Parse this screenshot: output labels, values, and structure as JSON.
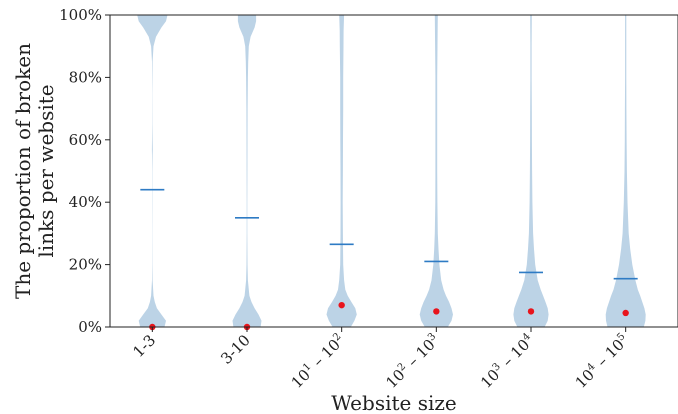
{
  "chart_data": {
    "type": "violin",
    "xlabel": "Website size",
    "ylabel_lines": [
      "The proportion of broken",
      "links per website"
    ],
    "ylim": [
      0,
      100
    ],
    "yticks": [
      0,
      20,
      40,
      60,
      80,
      100
    ],
    "ytick_labels": [
      "0%",
      "20%",
      "40%",
      "60%",
      "80%",
      "100%"
    ],
    "colors": {
      "violin": "#bcd3e6",
      "mean": "#2e7bc4",
      "median": "#e8141c"
    },
    "categories": [
      {
        "label": "1-3",
        "parts": [],
        "mean": 44,
        "median": 0,
        "density": [
          [
            0,
            0.4
          ],
          [
            2,
            0.45
          ],
          [
            4,
            0.3
          ],
          [
            6,
            0.15
          ],
          [
            8,
            0.08
          ],
          [
            10,
            0.04
          ],
          [
            15,
            0.01
          ],
          [
            20,
            0.004
          ],
          [
            30,
            0.003
          ],
          [
            40,
            0.004
          ],
          [
            50,
            0.006
          ],
          [
            55,
            0.01
          ],
          [
            57,
            0.015
          ],
          [
            60,
            0.01
          ],
          [
            65,
            0.005
          ],
          [
            75,
            0.003
          ],
          [
            85,
            0.01
          ],
          [
            90,
            0.04
          ],
          [
            93,
            0.12
          ],
          [
            96,
            0.3
          ],
          [
            98,
            0.45
          ],
          [
            100,
            0.5
          ]
        ]
      },
      {
        "label": "3-10",
        "parts": [],
        "mean": 35,
        "median": 0,
        "density": [
          [
            0,
            0.45
          ],
          [
            2,
            0.48
          ],
          [
            4,
            0.38
          ],
          [
            6,
            0.25
          ],
          [
            8,
            0.15
          ],
          [
            10,
            0.08
          ],
          [
            15,
            0.03
          ],
          [
            20,
            0.015
          ],
          [
            30,
            0.01
          ],
          [
            40,
            0.01
          ],
          [
            50,
            0.012
          ],
          [
            60,
            0.015
          ],
          [
            70,
            0.02
          ],
          [
            80,
            0.03
          ],
          [
            85,
            0.04
          ],
          [
            90,
            0.06
          ],
          [
            93,
            0.12
          ],
          [
            96,
            0.25
          ],
          [
            98,
            0.3
          ],
          [
            100,
            0.3
          ]
        ]
      },
      {
        "label": "",
        "parts": [
          "10",
          "1",
          " – 10",
          "2"
        ],
        "mean": 26.5,
        "median": 7,
        "density": [
          [
            0,
            0.3
          ],
          [
            2,
            0.42
          ],
          [
            4,
            0.5
          ],
          [
            6,
            0.45
          ],
          [
            8,
            0.32
          ],
          [
            10,
            0.2
          ],
          [
            12,
            0.12
          ],
          [
            15,
            0.08
          ],
          [
            20,
            0.05
          ],
          [
            30,
            0.04
          ],
          [
            40,
            0.035
          ],
          [
            50,
            0.04
          ],
          [
            60,
            0.045
          ],
          [
            70,
            0.05
          ],
          [
            80,
            0.05
          ],
          [
            90,
            0.06
          ],
          [
            95,
            0.065
          ],
          [
            100,
            0.08
          ]
        ]
      },
      {
        "label": "",
        "parts": [
          "10",
          "2",
          " – 10",
          "3"
        ],
        "mean": 21,
        "median": 5,
        "density": [
          [
            0,
            0.38
          ],
          [
            2,
            0.5
          ],
          [
            4,
            0.55
          ],
          [
            6,
            0.5
          ],
          [
            8,
            0.42
          ],
          [
            10,
            0.32
          ],
          [
            12,
            0.24
          ],
          [
            15,
            0.16
          ],
          [
            20,
            0.1
          ],
          [
            25,
            0.07
          ],
          [
            30,
            0.05
          ],
          [
            40,
            0.035
          ],
          [
            50,
            0.03
          ],
          [
            60,
            0.03
          ],
          [
            70,
            0.03
          ],
          [
            80,
            0.03
          ],
          [
            90,
            0.04
          ],
          [
            100,
            0.05
          ]
        ]
      },
      {
        "label": "",
        "parts": [
          "10",
          "3",
          " – 10",
          "4"
        ],
        "mean": 17.5,
        "median": 5,
        "density": [
          [
            0,
            0.45
          ],
          [
            2,
            0.55
          ],
          [
            4,
            0.58
          ],
          [
            6,
            0.55
          ],
          [
            8,
            0.48
          ],
          [
            10,
            0.4
          ],
          [
            12,
            0.32
          ],
          [
            15,
            0.22
          ],
          [
            20,
            0.14
          ],
          [
            25,
            0.1
          ],
          [
            30,
            0.07
          ],
          [
            40,
            0.045
          ],
          [
            50,
            0.035
          ],
          [
            60,
            0.03
          ],
          [
            70,
            0.025
          ],
          [
            80,
            0.02
          ],
          [
            90,
            0.02
          ],
          [
            100,
            0.025
          ]
        ]
      },
      {
        "label": "",
        "parts": [
          "10",
          "4",
          " – 10",
          "5"
        ],
        "mean": 15.5,
        "median": 4.5,
        "density": [
          [
            0,
            0.6
          ],
          [
            2,
            0.65
          ],
          [
            4,
            0.66
          ],
          [
            6,
            0.62
          ],
          [
            8,
            0.55
          ],
          [
            10,
            0.48
          ],
          [
            12,
            0.4
          ],
          [
            15,
            0.32
          ],
          [
            20,
            0.22
          ],
          [
            25,
            0.15
          ],
          [
            30,
            0.1
          ],
          [
            40,
            0.06
          ],
          [
            50,
            0.04
          ],
          [
            60,
            0.03
          ],
          [
            70,
            0.025
          ],
          [
            80,
            0.02
          ],
          [
            90,
            0.02
          ],
          [
            100,
            0.02
          ]
        ]
      }
    ]
  }
}
